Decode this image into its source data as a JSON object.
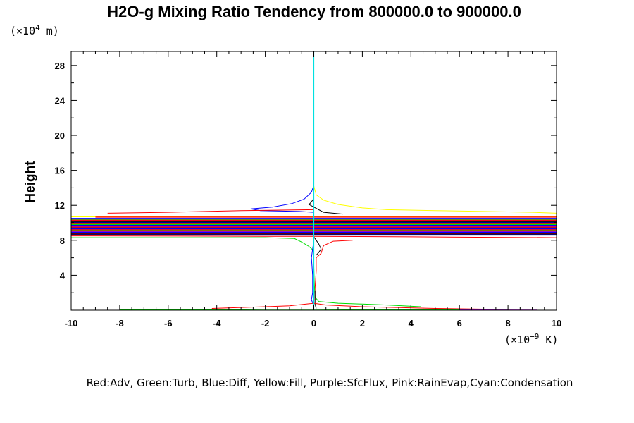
{
  "chart_data": {
    "type": "line",
    "title": "H2O-g Mixing Ratio Tendency from 800000.0 to 900000.0",
    "ylabel": "Height",
    "y_unit_prefix": "(×10",
    "y_unit_exp": "4",
    "y_unit_suffix": " m)",
    "x_unit_prefix": "(×10",
    "x_unit_exp": "−9",
    "x_unit_suffix": " K)",
    "xlim": [
      -10,
      10
    ],
    "ylim": [
      0,
      29.6
    ],
    "x_ticks": [
      -10,
      -8,
      -6,
      -4,
      -2,
      0,
      2,
      4,
      6,
      8,
      10
    ],
    "x_tick_labels": [
      "-10",
      "-8",
      "-6",
      "-4",
      "-2",
      "0",
      "2",
      "4",
      "6",
      "8",
      "10"
    ],
    "y_ticks": [
      4,
      8,
      12,
      16,
      20,
      24,
      28
    ],
    "y_tick_labels": [
      "4",
      "8",
      "12",
      "16",
      "20",
      "24",
      "28"
    ],
    "legend_text": "Red:Adv, Green:Turb, Blue:Diff, Yellow:Fill, Purple:SfcFlux, Pink:RainEvap,Cyan:Condensation",
    "colors": {
      "red": "#ff0000",
      "green": "#00dd00",
      "blue": "#0000ff",
      "yellow": "#ffff00",
      "purple": "#a000c8",
      "pink": "#ff60ff",
      "cyan": "#00e0e0",
      "black": "#000000"
    },
    "series": [
      {
        "color": "#ffff00",
        "points": [
          [
            0,
            14.2
          ],
          [
            0.1,
            13.2
          ],
          [
            0.4,
            12.6
          ],
          [
            1,
            12.1
          ],
          [
            2,
            11.7
          ],
          [
            3,
            11.5
          ],
          [
            5,
            11.4
          ],
          [
            7,
            11.3
          ],
          [
            9,
            11.2
          ],
          [
            10,
            11.1
          ]
        ]
      },
      {
        "color": "#0000ff",
        "points": [
          [
            0,
            14.3
          ],
          [
            -0.1,
            13.5
          ],
          [
            -0.4,
            12.7
          ],
          [
            -0.9,
            12.2
          ],
          [
            -1.7,
            11.8
          ],
          [
            -2.6,
            11.6
          ],
          [
            -2.2,
            11.4
          ],
          [
            -0.6,
            11.3
          ],
          [
            0,
            11.2
          ]
        ]
      },
      {
        "color": "#000000",
        "points": [
          [
            0,
            12.8
          ],
          [
            -0.1,
            12.4
          ],
          [
            -0.2,
            12.1
          ],
          [
            0,
            11.8
          ],
          [
            0.4,
            11.2
          ],
          [
            1.2,
            11.0
          ]
        ]
      },
      {
        "color": "#ff0000",
        "points": [
          [
            0,
            11.5
          ],
          [
            -3,
            11.4
          ],
          [
            -6,
            11.2
          ],
          [
            -8.5,
            11.1
          ]
        ]
      },
      {
        "color": "#ff0000",
        "points": [
          [
            -10,
            8.5
          ],
          [
            -2,
            8.45
          ],
          [
            0,
            8.45
          ],
          [
            4,
            8.4
          ],
          [
            10,
            8.3
          ]
        ]
      },
      {
        "color": "#ff0000",
        "points": [
          [
            0.1,
            6.0
          ],
          [
            0.3,
            6.5
          ],
          [
            0.4,
            7.4
          ],
          [
            0.8,
            7.9
          ],
          [
            1.6,
            8.0
          ]
        ]
      },
      {
        "color": "#ff0000",
        "points": [
          [
            0.1,
            6.0
          ],
          [
            0.1,
            4.5
          ],
          [
            0.05,
            2.5
          ],
          [
            0.05,
            1.2
          ]
        ]
      },
      {
        "color": "#00dd00",
        "points": [
          [
            -10,
            8.3
          ],
          [
            -2,
            8.3
          ],
          [
            -0.8,
            8.2
          ],
          [
            -0.5,
            7.8
          ],
          [
            -0.2,
            7.3
          ],
          [
            0,
            6.8
          ],
          [
            0,
            5.0
          ]
        ]
      },
      {
        "color": "#00dd00",
        "points": [
          [
            0,
            5.0
          ],
          [
            0.02,
            3.0
          ],
          [
            0.05,
            1.5
          ],
          [
            0.2,
            1.0
          ],
          [
            1,
            0.8
          ],
          [
            2,
            0.7
          ],
          [
            3,
            0.6
          ],
          [
            4.4,
            0.4
          ]
        ]
      },
      {
        "color": "#0000ff",
        "points": [
          [
            0,
            8.0
          ],
          [
            -0.1,
            6.0
          ],
          [
            -0.05,
            4.0
          ],
          [
            -0.05,
            2.0
          ],
          [
            -0.1,
            1.2
          ],
          [
            0,
            0.5
          ]
        ]
      },
      {
        "color": "#000000",
        "points": [
          [
            0,
            8.4
          ],
          [
            0.1,
            8.0
          ],
          [
            0.2,
            7.6
          ],
          [
            0.3,
            7.0
          ],
          [
            0.2,
            6.6
          ],
          [
            0.1,
            6.3
          ]
        ]
      },
      {
        "color": "#000000",
        "points": [
          [
            0.05,
            2.2
          ],
          [
            0.05,
            0.7
          ],
          [
            0.1,
            0.2
          ]
        ]
      },
      {
        "color": "#ff0000",
        "points": [
          [
            -4.2,
            0.2
          ],
          [
            -2,
            0.4
          ],
          [
            -1,
            0.5
          ],
          [
            0,
            0.8
          ],
          [
            0.5,
            0.6
          ],
          [
            2,
            0.4
          ],
          [
            5,
            0.2
          ],
          [
            7.5,
            0.1
          ]
        ]
      },
      {
        "color": "#00dd00",
        "points": [
          [
            -8,
            0.05
          ],
          [
            -4,
            0.05
          ],
          [
            -2,
            0.1
          ],
          [
            0,
            0.1
          ],
          [
            4,
            0.05
          ],
          [
            8,
            0.03
          ]
        ]
      },
      {
        "color": "#a000c8",
        "points": [
          [
            6,
            0.05
          ],
          [
            8,
            0.03
          ],
          [
            9.2,
            0.02
          ]
        ]
      }
    ],
    "band_lines": [
      {
        "y": 10.7,
        "x0": -10,
        "x1": 10,
        "color": "#ffff00"
      },
      {
        "y": 10.65,
        "x0": -9,
        "x1": 10,
        "color": "#ff0000"
      },
      {
        "y": 10.5,
        "x0": -10,
        "x1": 10,
        "color": "#0000ff"
      },
      {
        "y": 10.4,
        "x0": -10,
        "x1": 10,
        "color": "#00dd00"
      },
      {
        "y": 10.3,
        "x0": -10,
        "x1": 10,
        "color": "#ff0000"
      },
      {
        "y": 10.2,
        "x0": -10,
        "x1": 10,
        "color": "#a000c8"
      },
      {
        "y": 10.1,
        "x0": -10,
        "x1": 10,
        "color": "#000000"
      },
      {
        "y": 10.0,
        "x0": -10,
        "x1": 10,
        "color": "#0000ff"
      },
      {
        "y": 9.9,
        "x0": -10,
        "x1": 10,
        "color": "#ff0000"
      },
      {
        "y": 9.8,
        "x0": -10,
        "x1": 10,
        "color": "#00dd00"
      },
      {
        "y": 9.7,
        "x0": -10,
        "x1": 10,
        "color": "#0000ff"
      },
      {
        "y": 9.6,
        "x0": -10,
        "x1": 10,
        "color": "#a000c8"
      },
      {
        "y": 9.5,
        "x0": -10,
        "x1": 10,
        "color": "#ff0000"
      },
      {
        "y": 9.4,
        "x0": -10,
        "x1": 10,
        "color": "#000000"
      },
      {
        "y": 9.3,
        "x0": -10,
        "x1": 10,
        "color": "#0000ff"
      },
      {
        "y": 9.2,
        "x0": -10,
        "x1": 10,
        "color": "#ff0000"
      },
      {
        "y": 9.1,
        "x0": -10,
        "x1": 10,
        "color": "#00dd00"
      },
      {
        "y": 9.0,
        "x0": -10,
        "x1": 10,
        "color": "#a000c8"
      },
      {
        "y": 8.9,
        "x0": -10,
        "x1": 10,
        "color": "#0000ff"
      },
      {
        "y": 8.8,
        "x0": -10,
        "x1": 10,
        "color": "#ff0000"
      },
      {
        "y": 8.7,
        "x0": -10,
        "x1": 10,
        "color": "#000000"
      },
      {
        "y": 8.6,
        "x0": -10,
        "x1": 10,
        "color": "#0000ff"
      }
    ],
    "cyan_line": {
      "x": 0,
      "y0": 0,
      "y1": 29.6,
      "color": "#00e0e0"
    }
  }
}
